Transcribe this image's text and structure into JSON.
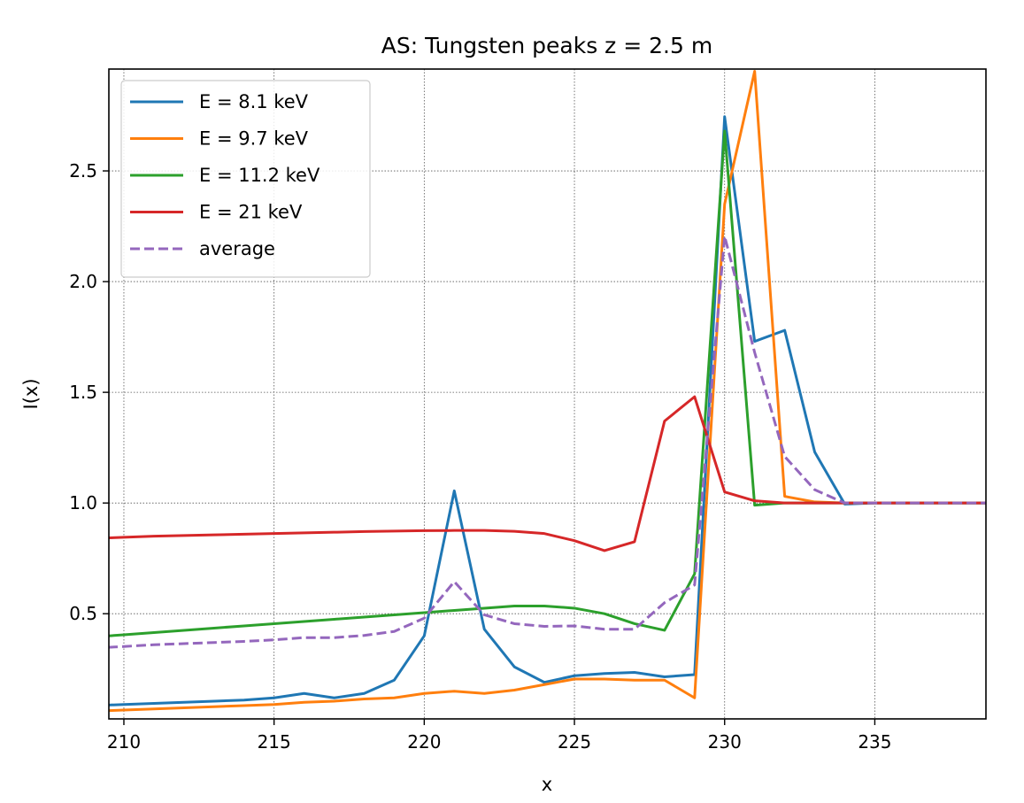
{
  "chart_data": {
    "type": "line",
    "title": "AS: Tungsten peaks z = 2.5 m",
    "xlabel": "x",
    "ylabel": "I(x)",
    "xlim": [
      209.5,
      238.7
    ],
    "ylim": [
      0.025,
      2.96
    ],
    "xticks": [
      210,
      215,
      220,
      225,
      230,
      235
    ],
    "yticks": [
      0.5,
      1.0,
      1.5,
      2.0,
      2.5
    ],
    "xtick_labels": [
      "210",
      "215",
      "220",
      "225",
      "230",
      "235"
    ],
    "ytick_labels": [
      "0.5",
      "1.0",
      "1.5",
      "2.0",
      "2.5"
    ],
    "grid": true,
    "legend_position": "upper-left",
    "x": [
      209,
      210,
      211,
      212,
      213,
      214,
      215,
      216,
      217,
      218,
      219,
      220,
      221,
      222,
      223,
      224,
      225,
      226,
      227,
      228,
      229,
      230,
      231,
      232,
      233,
      234,
      235,
      236,
      237,
      238,
      239
    ],
    "series": [
      {
        "name": "E = 8.1 keV",
        "color": "#1f77b4",
        "dash": "solid",
        "values": [
          0.085,
          0.09,
          0.095,
          0.1,
          0.105,
          0.11,
          0.12,
          0.14,
          0.12,
          0.14,
          0.2,
          0.4,
          1.055,
          0.43,
          0.26,
          0.19,
          0.22,
          0.23,
          0.235,
          0.215,
          0.225,
          2.745,
          1.73,
          1.78,
          1.23,
          0.995,
          1.0,
          1.0,
          1.0,
          1.0,
          1.0
        ]
      },
      {
        "name": "E = 9.7 keV",
        "color": "#ff7f0e",
        "dash": "solid",
        "values": [
          0.06,
          0.065,
          0.07,
          0.075,
          0.08,
          0.085,
          0.09,
          0.1,
          0.105,
          0.115,
          0.12,
          0.14,
          0.15,
          0.14,
          0.155,
          0.18,
          0.205,
          0.205,
          0.2,
          0.2,
          0.12,
          2.35,
          2.95,
          1.03,
          1.005,
          1.0,
          1.0,
          1.0,
          1.0,
          1.0,
          1.0
        ]
      },
      {
        "name": "E = 11.2 keV",
        "color": "#2ca02c",
        "dash": "solid",
        "values": [
          0.395,
          0.405,
          0.415,
          0.425,
          0.435,
          0.445,
          0.455,
          0.465,
          0.475,
          0.485,
          0.495,
          0.505,
          0.515,
          0.525,
          0.535,
          0.535,
          0.525,
          0.5,
          0.455,
          0.425,
          0.68,
          2.68,
          0.99,
          1.0,
          1.0,
          1.0,
          1.0,
          1.0,
          1.0,
          1.0,
          1.0
        ]
      },
      {
        "name": "E = 21 keV",
        "color": "#d62728",
        "dash": "solid",
        "values": [
          0.84,
          0.845,
          0.85,
          0.853,
          0.856,
          0.859,
          0.862,
          0.865,
          0.868,
          0.871,
          0.873,
          0.875,
          0.876,
          0.876,
          0.872,
          0.862,
          0.83,
          0.785,
          0.825,
          1.37,
          1.48,
          1.05,
          1.01,
          1.0,
          1.0,
          1.0,
          1.0,
          1.0,
          1.0,
          1.0,
          1.0
        ]
      },
      {
        "name": "average",
        "color": "#9467bd",
        "dash": "dashed",
        "values": [
          0.345,
          0.352,
          0.36,
          0.365,
          0.37,
          0.375,
          0.382,
          0.392,
          0.392,
          0.402,
          0.42,
          0.48,
          0.645,
          0.495,
          0.455,
          0.443,
          0.445,
          0.43,
          0.43,
          0.55,
          0.63,
          2.205,
          1.68,
          1.21,
          1.06,
          1.0,
          1.0,
          1.0,
          1.0,
          1.0,
          1.0
        ]
      }
    ]
  }
}
